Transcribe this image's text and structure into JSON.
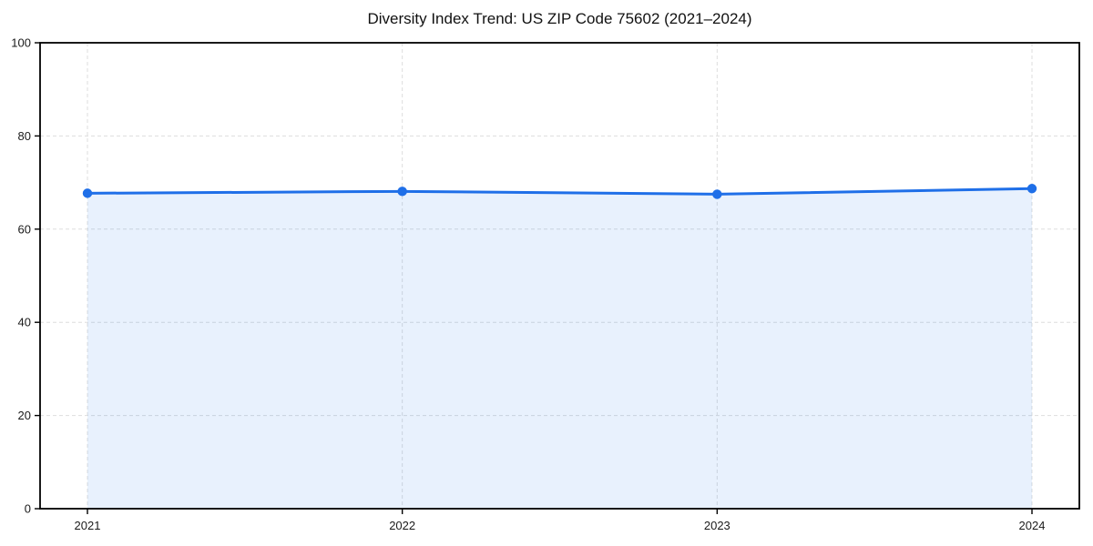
{
  "chart_data": {
    "type": "line",
    "title": "Diversity Index Trend: US ZIP Code 75602 (2021–2024)",
    "x": [
      "2021",
      "2022",
      "2023",
      "2024"
    ],
    "series": [
      {
        "name": "Diversity Index",
        "values": [
          67.7,
          68.1,
          67.5,
          68.7
        ]
      }
    ],
    "xlabel": "",
    "ylabel": "",
    "ylim": [
      0,
      100
    ],
    "yticks": [
      0,
      20,
      40,
      60,
      80,
      100
    ],
    "grid": true,
    "grid_style": "dashed",
    "area_fill": true,
    "legend_position": "none",
    "marker": "circle",
    "colors": {
      "line": "#1f6fe8",
      "area_fill": "#1a73e8",
      "area_fill_opacity": "0.10",
      "grid": "#dddddd",
      "spine": "#000000",
      "tick_text": "#1a1a1a",
      "background": "#ffffff"
    }
  }
}
